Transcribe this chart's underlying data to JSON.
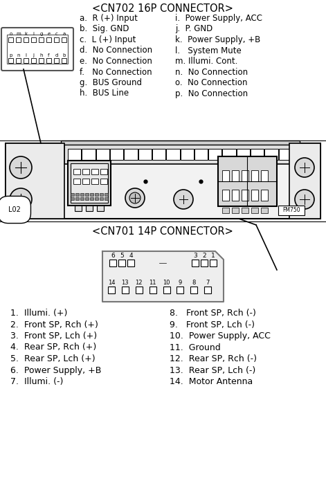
{
  "bg_color": "#ffffff",
  "title_cn702": "<CN702 16P CONNECTOR>",
  "cn702_left": [
    "a.  R (+) Input",
    "b.  Sig. GND",
    "c.  L (+) Input",
    "d.  No Connection",
    "e.  No Connection",
    "f.   No Connection",
    "g.  BUS Ground",
    "h.  BUS Line"
  ],
  "cn702_right": [
    "i.  Power Supply, ACC",
    "j.  P. GND",
    "k.  Power Supply, +B",
    "l.   System Mute",
    "m. Illumi. Cont.",
    "n.  No Connection",
    "o.  No Connection",
    "p.  No Connection"
  ],
  "title_cn701": "<CN701 14P CONNECTOR>",
  "cn701_left": [
    "1.  Illumi. (+)",
    "2.  Front SP, Rch (+)",
    "3.  Front SP, Lch (+)",
    "4.  Rear SP, Rch (+)",
    "5.  Rear SP, Lch (+)",
    "6.  Power Supply, +B",
    "7.  Illumi. (-)"
  ],
  "cn701_right": [
    "8.   Front SP, Rch (-)",
    "9.   Front SP, Lch (-)",
    "10.  Power Supply, ACC",
    "11.  Ground",
    "12.  Rear SP, Rch (-)",
    "13.  Rear SP, Lch (-)",
    "14.  Motor Antenna"
  ],
  "cn702_top_row": [
    "o",
    "m",
    "k",
    "i",
    "g",
    "e",
    "c",
    "a"
  ],
  "cn702_bot_row": [
    "p",
    "n",
    "l",
    "j",
    "h",
    "f",
    "d",
    "b"
  ]
}
